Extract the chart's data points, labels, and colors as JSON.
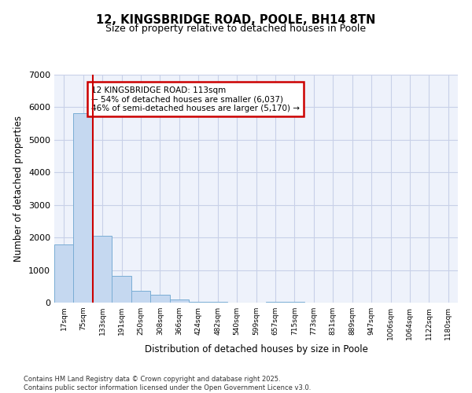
{
  "title1": "12, KINGSBRIDGE ROAD, POOLE, BH14 8TN",
  "title2": "Size of property relative to detached houses in Poole",
  "xlabel": "Distribution of detached houses by size in Poole",
  "ylabel": "Number of detached properties",
  "categories": [
    "17sqm",
    "75sqm",
    "133sqm",
    "191sqm",
    "250sqm",
    "308sqm",
    "366sqm",
    "424sqm",
    "482sqm",
    "540sqm",
    "599sqm",
    "657sqm",
    "715sqm",
    "773sqm",
    "831sqm",
    "889sqm",
    "947sqm",
    "1006sqm",
    "1064sqm",
    "1122sqm",
    "1180sqm"
  ],
  "values": [
    1780,
    5820,
    2060,
    820,
    370,
    230,
    100,
    20,
    20,
    0,
    0,
    20,
    20,
    0,
    0,
    0,
    0,
    0,
    0,
    0,
    0
  ],
  "bar_color": "#c5d8f0",
  "bar_edge_color": "#7aadd4",
  "vline_x": 1.5,
  "vline_color": "#cc0000",
  "annotation_text": "12 KINGSBRIDGE ROAD: 113sqm\n← 54% of detached houses are smaller (6,037)\n46% of semi-detached houses are larger (5,170) →",
  "annotation_box_color": "white",
  "annotation_box_edge_color": "#cc0000",
  "ylim": [
    0,
    7000
  ],
  "yticks": [
    0,
    1000,
    2000,
    3000,
    4000,
    5000,
    6000,
    7000
  ],
  "footer1": "Contains HM Land Registry data © Crown copyright and database right 2025.",
  "footer2": "Contains public sector information licensed under the Open Government Licence v3.0.",
  "bg_color": "white",
  "plot_bg_color": "#eef2fb",
  "grid_color": "#c8d0e8"
}
